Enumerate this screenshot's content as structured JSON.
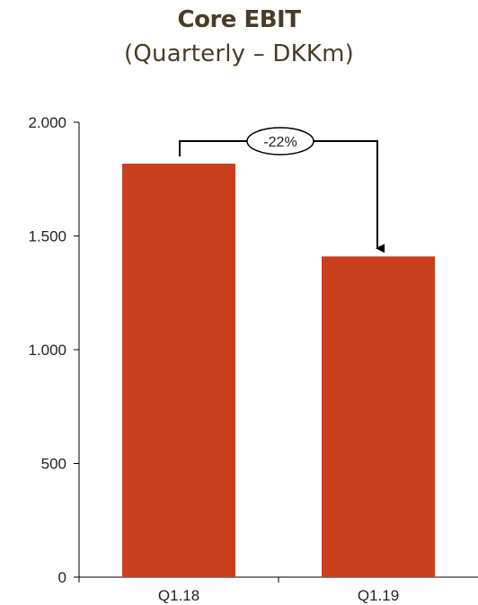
{
  "chart_data": {
    "type": "bar",
    "title": "Core EBIT",
    "subtitle": "(Quarterly – DKKm)",
    "categories": [
      "Q1.18",
      "Q1.19"
    ],
    "values": [
      1818,
      1410
    ],
    "ylim": [
      0,
      2000
    ],
    "yticks": [
      0,
      500,
      1000,
      1500,
      2000
    ],
    "ytick_labels": [
      "0",
      "500",
      "1.000",
      "1.500",
      "2.000"
    ],
    "grid": false,
    "bar_color": "#c9401f",
    "annotation": {
      "label": "-22%",
      "from": "Q1.18",
      "to": "Q1.19"
    }
  }
}
